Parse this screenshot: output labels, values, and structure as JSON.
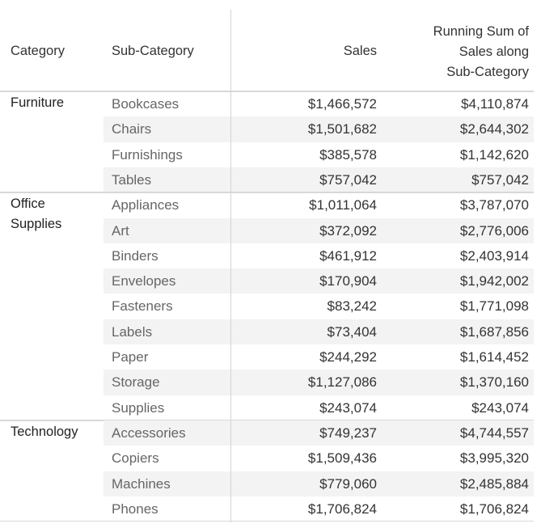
{
  "headers": {
    "category": "Category",
    "sub_category": "Sub-Category",
    "sales": "Sales",
    "running_sum": [
      "Running Sum of",
      "Sales along",
      "Sub-Category"
    ]
  },
  "groups": [
    {
      "category": [
        "Furniture"
      ],
      "rows": [
        {
          "sub": "Bookcases",
          "sales": "$1,466,572",
          "running": "$4,110,874"
        },
        {
          "sub": "Chairs",
          "sales": "$1,501,682",
          "running": "$2,644,302"
        },
        {
          "sub": "Furnishings",
          "sales": "$385,578",
          "running": "$1,142,620"
        },
        {
          "sub": "Tables",
          "sales": "$757,042",
          "running": "$757,042"
        }
      ]
    },
    {
      "category": [
        "Office",
        "Supplies"
      ],
      "rows": [
        {
          "sub": "Appliances",
          "sales": "$1,011,064",
          "running": "$3,787,070"
        },
        {
          "sub": "Art",
          "sales": "$372,092",
          "running": "$2,776,006"
        },
        {
          "sub": "Binders",
          "sales": "$461,912",
          "running": "$2,403,914"
        },
        {
          "sub": "Envelopes",
          "sales": "$170,904",
          "running": "$1,942,002"
        },
        {
          "sub": "Fasteners",
          "sales": "$83,242",
          "running": "$1,771,098"
        },
        {
          "sub": "Labels",
          "sales": "$73,404",
          "running": "$1,687,856"
        },
        {
          "sub": "Paper",
          "sales": "$244,292",
          "running": "$1,614,452"
        },
        {
          "sub": "Storage",
          "sales": "$1,127,086",
          "running": "$1,370,160"
        },
        {
          "sub": "Supplies",
          "sales": "$243,074",
          "running": "$243,074"
        }
      ]
    },
    {
      "category": [
        "Technology"
      ],
      "rows": [
        {
          "sub": "Accessories",
          "sales": "$749,237",
          "running": "$4,744,557"
        },
        {
          "sub": "Copiers",
          "sales": "$1,509,436",
          "running": "$3,995,320"
        },
        {
          "sub": "Machines",
          "sales": "$779,060",
          "running": "$2,485,884"
        },
        {
          "sub": "Phones",
          "sales": "$1,706,824",
          "running": "$1,706,824"
        }
      ]
    }
  ]
}
